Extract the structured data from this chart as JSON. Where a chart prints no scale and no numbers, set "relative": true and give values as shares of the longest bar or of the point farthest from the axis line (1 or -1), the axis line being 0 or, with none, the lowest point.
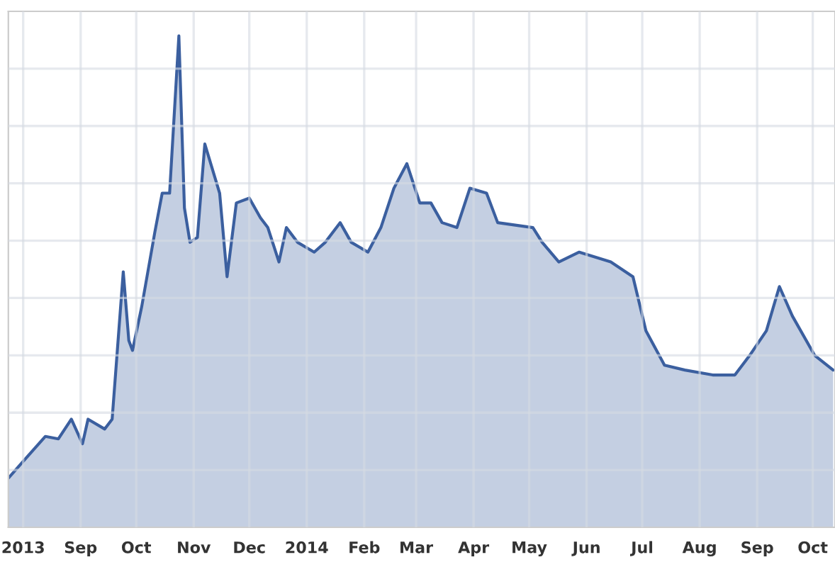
{
  "chart_data": {
    "type": "area",
    "relative": true,
    "grid": true,
    "x": [
      "2013-07-24",
      "2013-07-31",
      "2013-08-13",
      "2013-08-20",
      "2013-08-27",
      "2013-09-02",
      "2013-09-05",
      "2013-09-14",
      "2013-09-18",
      "2013-09-24",
      "2013-09-27",
      "2013-09-29",
      "2013-10-04",
      "2013-10-11",
      "2013-10-15",
      "2013-10-19",
      "2013-10-24",
      "2013-10-27",
      "2013-10-30",
      "2013-11-03",
      "2013-11-07",
      "2013-11-11",
      "2013-11-15",
      "2013-11-19",
      "2013-11-24",
      "2013-12-01",
      "2013-12-07",
      "2013-12-11",
      "2013-12-17",
      "2013-12-21",
      "2013-12-27",
      "2014-01-05",
      "2014-01-11",
      "2014-01-19",
      "2014-01-25",
      "2014-02-03",
      "2014-02-10",
      "2014-02-17",
      "2014-02-24",
      "2014-03-03",
      "2014-03-09",
      "2014-03-15",
      "2014-03-23",
      "2014-03-30",
      "2014-04-08",
      "2014-04-14",
      "2014-05-03",
      "2014-05-08",
      "2014-05-17",
      "2014-05-28",
      "2014-06-14",
      "2014-06-26",
      "2014-07-03",
      "2014-07-13",
      "2014-07-24",
      "2014-08-08",
      "2014-08-20",
      "2014-08-28",
      "2014-09-06",
      "2014-09-13",
      "2014-09-20",
      "2014-10-02",
      "2014-10-12"
    ],
    "series": [
      {
        "color": "#3b5f9f",
        "values": [
          0.1,
          0.13,
          0.185,
          0.18,
          0.22,
          0.17,
          0.22,
          0.2,
          0.22,
          0.52,
          0.38,
          0.36,
          0.45,
          0.6,
          0.68,
          0.68,
          1.0,
          0.65,
          0.58,
          0.59,
          0.78,
          0.73,
          0.68,
          0.51,
          0.66,
          0.67,
          0.63,
          0.61,
          0.54,
          0.61,
          0.58,
          0.56,
          0.58,
          0.62,
          0.58,
          0.56,
          0.61,
          0.69,
          0.74,
          0.66,
          0.66,
          0.62,
          0.61,
          0.69,
          0.68,
          0.62,
          0.61,
          0.58,
          0.54,
          0.56,
          0.54,
          0.51,
          0.4,
          0.33,
          0.32,
          0.31,
          0.31,
          0.35,
          0.4,
          0.49,
          0.43,
          0.35,
          0.32
        ]
      }
    ],
    "xlim": [
      "2013-07-24",
      "2014-10-13"
    ],
    "xticks": [
      {
        "value": "2013-08-01",
        "label": "2013"
      },
      {
        "value": "2013-09-01",
        "label": "Sep"
      },
      {
        "value": "2013-10-01",
        "label": "Oct"
      },
      {
        "value": "2013-11-01",
        "label": "Nov"
      },
      {
        "value": "2013-12-01",
        "label": "Dec"
      },
      {
        "value": "2014-01-01",
        "label": "2014"
      },
      {
        "value": "2014-02-01",
        "label": "Feb"
      },
      {
        "value": "2014-03-01",
        "label": "Mar"
      },
      {
        "value": "2014-04-01",
        "label": "Apr"
      },
      {
        "value": "2014-05-01",
        "label": "May"
      },
      {
        "value": "2014-06-01",
        "label": "Jun"
      },
      {
        "value": "2014-07-01",
        "label": "Jul"
      },
      {
        "value": "2014-08-01",
        "label": "Aug"
      },
      {
        "value": "2014-09-01",
        "label": "Sep"
      },
      {
        "value": "2014-10-01",
        "label": "Oct"
      }
    ]
  }
}
